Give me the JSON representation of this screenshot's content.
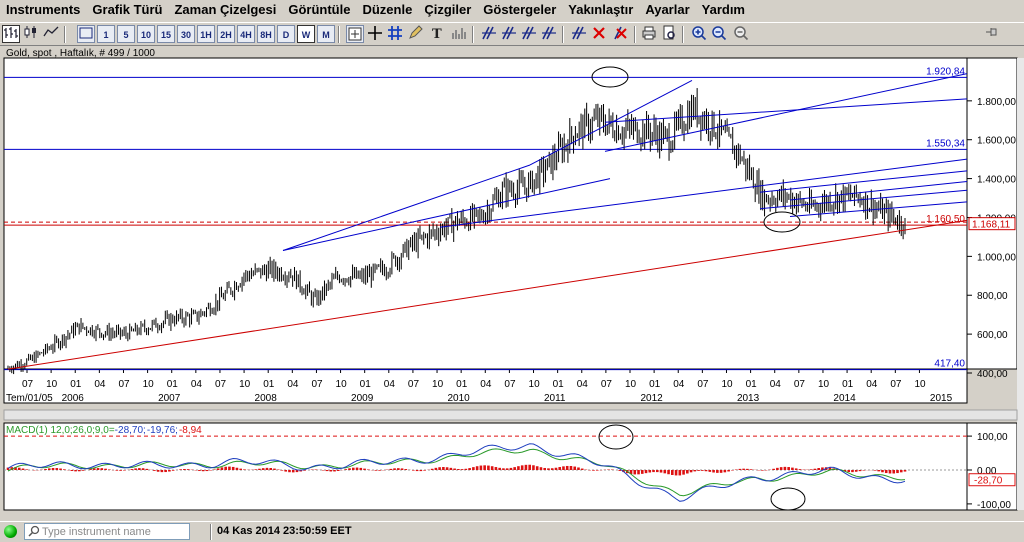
{
  "menu": [
    "Instruments",
    "Grafik Türü",
    "Zaman Çizelgesi",
    "Görüntüle",
    "Düzenle",
    "Çizgiler",
    "Göstergeler",
    "Yakınlaştır",
    "Ayarlar",
    "Yardım"
  ],
  "toolbar": {
    "timeframes": [
      "1",
      "5",
      "10",
      "15",
      "30",
      "1H",
      "2H",
      "4H",
      "8H",
      "D",
      "W",
      "M"
    ],
    "active_timeframe": "W",
    "icons": [
      "bar-chart-icon",
      "candle-chart-icon",
      "line-chart-icon",
      "crosshair-icon",
      "grid-icon",
      "trend-lines-icon",
      "zoom-in-icon",
      "zoom-out-icon",
      "print-icon",
      "preview-icon"
    ],
    "pin_icon": "pin-icon"
  },
  "chart": {
    "title": "Gold, spot , Haftalık, # 499 / 1000",
    "price_labels": [
      "1.800,00",
      "1.600,00",
      "1.400,00",
      "1.200,00",
      "1.000,00",
      "800,00",
      "600,00",
      "400,00"
    ],
    "level_tags": {
      "high": "1.920,84",
      "mid": "1.550,34",
      "support": "1.160,50",
      "low": "417,40"
    },
    "current_price": "1.168,11",
    "month_labels": [
      "07",
      "10",
      "01",
      "04",
      "07",
      "10",
      "01",
      "04",
      "07",
      "10",
      "01",
      "04",
      "07",
      "10",
      "01",
      "04",
      "07",
      "10",
      "01",
      "04",
      "07",
      "10",
      "01",
      "04",
      "07",
      "10",
      "01",
      "04",
      "07",
      "10",
      "01",
      "04",
      "07",
      "10",
      "01",
      "04",
      "07",
      "10"
    ],
    "year_labels": [
      "2006",
      "2007",
      "2008",
      "2009",
      "2010",
      "2011",
      "2012",
      "2013",
      "2014",
      "2015"
    ],
    "date_start": "Tem/01/05",
    "macd": {
      "label": "MACD(1) 12,0;26,0;9,0=",
      "macd_value": "-28,70",
      "signal_value": "-19,76",
      "hist_value": "-8,94",
      "axis_labels": [
        "100,00",
        "0,00",
        "-100,00"
      ],
      "current_tag": "-28,70"
    },
    "colors": {
      "candle": "#000000",
      "trend_line": "#0000cc",
      "support_line": "#cc0000",
      "macd_line": "#1f3fbf",
      "signal_line": "#2a9a2a",
      "histogram": "#dd1111"
    }
  },
  "chart_data": {
    "type": "candlestick",
    "instrument": "Gold, spot",
    "timeframe": "Haftalık",
    "x": [
      "2005-07",
      "2005-10",
      "2006-01",
      "2006-04",
      "2006-07",
      "2006-10",
      "2007-01",
      "2007-04",
      "2007-07",
      "2007-10",
      "2008-01",
      "2008-04",
      "2008-07",
      "2008-10",
      "2009-01",
      "2009-04",
      "2009-07",
      "2009-10",
      "2010-01",
      "2010-04",
      "2010-07",
      "2010-10",
      "2011-01",
      "2011-04",
      "2011-07",
      "2011-10",
      "2012-01",
      "2012-04",
      "2012-07",
      "2012-10",
      "2013-01",
      "2013-04",
      "2013-07",
      "2013-10",
      "2014-01",
      "2014-04",
      "2014-07",
      "2014-10",
      "2014-11"
    ],
    "close": [
      425,
      470,
      550,
      640,
      610,
      600,
      640,
      680,
      690,
      780,
      900,
      930,
      910,
      770,
      900,
      890,
      940,
      1050,
      1120,
      1180,
      1200,
      1340,
      1360,
      1480,
      1640,
      1700,
      1650,
      1650,
      1600,
      1760,
      1660,
      1520,
      1300,
      1310,
      1250,
      1300,
      1310,
      1230,
      1168
    ],
    "ylim": [
      400,
      2000
    ],
    "horizontal_levels": [
      1920.84,
      1550.34,
      1160.5,
      417.4
    ],
    "macd": {
      "x": [
        "2005-07",
        "2006-07",
        "2007-07",
        "2008-07",
        "2009-07",
        "2010-07",
        "2011-07",
        "2011-09",
        "2012-07",
        "2013-07",
        "2014-01",
        "2014-07",
        "2014-11"
      ],
      "macd": [
        5,
        18,
        10,
        25,
        10,
        20,
        45,
        75,
        10,
        -85,
        -20,
        -5,
        -28.7
      ],
      "signal": [
        3,
        15,
        12,
        20,
        12,
        18,
        40,
        60,
        12,
        -70,
        -25,
        -8,
        -19.76
      ],
      "ylim": [
        -120,
        120
      ]
    }
  }
}
